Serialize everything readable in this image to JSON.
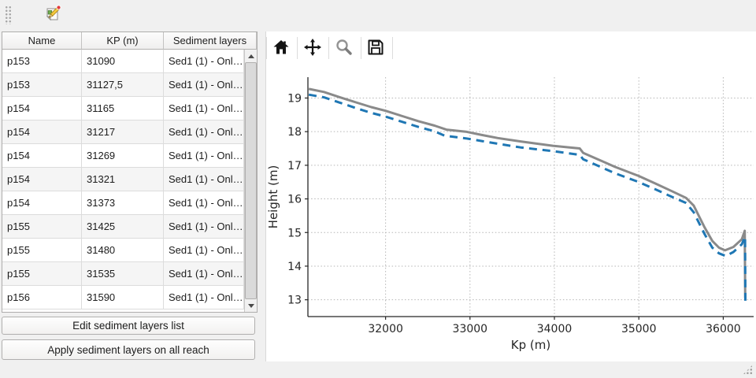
{
  "toolbar": {
    "edit_tool_icon": "edit-pencil-icon"
  },
  "table": {
    "headers": [
      "Name",
      "KP (m)",
      "Sediment layers"
    ],
    "rows": [
      {
        "name": "p153",
        "kp": "31090",
        "sediment": "Sed1 (1) - Onl…"
      },
      {
        "name": "p153",
        "kp": "31127,5",
        "sediment": "Sed1 (1) - Onl…"
      },
      {
        "name": "p154",
        "kp": "31165",
        "sediment": "Sed1 (1) - Onl…"
      },
      {
        "name": "p154",
        "kp": "31217",
        "sediment": "Sed1 (1) - Onl…"
      },
      {
        "name": "p154",
        "kp": "31269",
        "sediment": "Sed1 (1) - Onl…"
      },
      {
        "name": "p154",
        "kp": "31321",
        "sediment": "Sed1 (1) - Onl…"
      },
      {
        "name": "p154",
        "kp": "31373",
        "sediment": "Sed1 (1) - Onl…"
      },
      {
        "name": "p155",
        "kp": "31425",
        "sediment": "Sed1 (1) - Onl…"
      },
      {
        "name": "p155",
        "kp": "31480",
        "sediment": "Sed1 (1) - Onl…"
      },
      {
        "name": "p155",
        "kp": "31535",
        "sediment": "Sed1 (1) - Onl…"
      },
      {
        "name": "p156",
        "kp": "31590",
        "sediment": "Sed1 (1) - Onl…"
      }
    ]
  },
  "buttons": {
    "edit": "Edit sediment layers list",
    "apply": "Apply sediment layers on all reach"
  },
  "chart_toolbar": {
    "icons": [
      "home",
      "pan",
      "zoom",
      "save"
    ]
  },
  "chart_data": {
    "type": "line",
    "title": "",
    "xlabel": "Kp (m)",
    "ylabel": "Height (m)",
    "xlim": [
      31080,
      36360
    ],
    "ylim": [
      12.5,
      19.62
    ],
    "xticks": [
      32000,
      33000,
      34000,
      35000,
      36000
    ],
    "yticks": [
      13,
      14,
      15,
      16,
      17,
      18,
      19
    ],
    "grid": true,
    "legend": false,
    "series": [
      {
        "name": "top-profile",
        "color": "#8a8a8a",
        "style": "solid",
        "width": 3,
        "x": [
          31090,
          31270,
          31460,
          31650,
          31830,
          32000,
          32200,
          32390,
          32580,
          32720,
          32950,
          33140,
          33330,
          33600,
          33980,
          34300,
          34340,
          34540,
          34720,
          35000,
          35200,
          35400,
          35560,
          35650,
          35780,
          35870,
          35950,
          36020,
          36120,
          36220,
          36255,
          36260
        ],
        "y": [
          19.27,
          19.18,
          19.02,
          18.87,
          18.73,
          18.62,
          18.46,
          18.31,
          18.18,
          18.06,
          18.0,
          17.9,
          17.81,
          17.71,
          17.58,
          17.5,
          17.37,
          17.15,
          16.95,
          16.68,
          16.45,
          16.22,
          16.03,
          15.8,
          15.15,
          14.75,
          14.55,
          14.47,
          14.57,
          14.8,
          15.05,
          13.05
        ]
      },
      {
        "name": "sediment-profile",
        "color": "#1f77b4",
        "style": "dashed",
        "width": 3,
        "x": [
          31090,
          31270,
          31460,
          31650,
          31830,
          32000,
          32200,
          32390,
          32580,
          32700,
          32950,
          33140,
          33330,
          33600,
          33980,
          34300,
          34340,
          34540,
          34720,
          35000,
          35200,
          35400,
          35560,
          35650,
          35780,
          35870,
          35950,
          36030,
          36120,
          36220,
          36258,
          36262
        ],
        "y": [
          19.1,
          19.02,
          18.86,
          18.7,
          18.56,
          18.45,
          18.29,
          18.14,
          18.01,
          17.88,
          17.8,
          17.72,
          17.64,
          17.53,
          17.42,
          17.31,
          17.18,
          16.96,
          16.76,
          16.5,
          16.28,
          16.05,
          15.88,
          15.6,
          14.95,
          14.55,
          14.38,
          14.3,
          14.42,
          14.65,
          14.88,
          12.9
        ]
      }
    ]
  }
}
